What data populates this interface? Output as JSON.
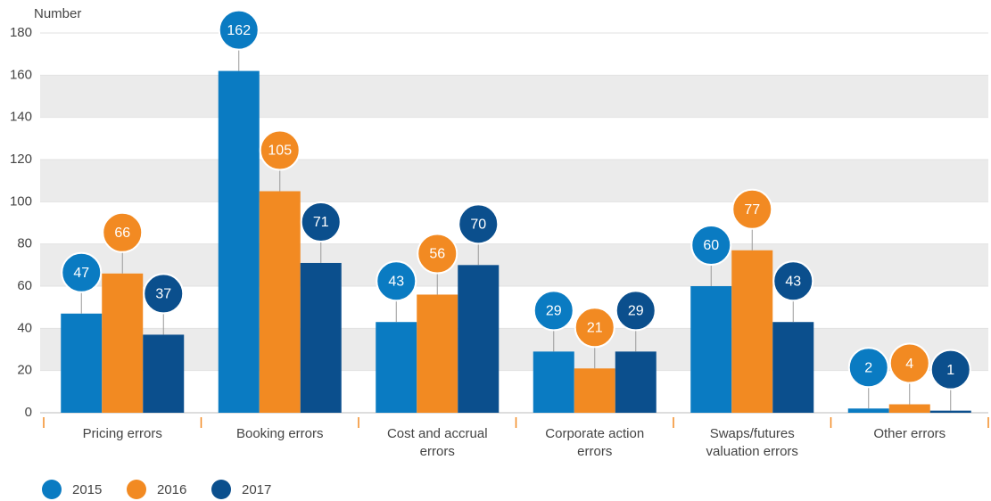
{
  "chart_data": {
    "type": "bar",
    "ylabel": "Number",
    "categories": [
      "Pricing errors",
      "Booking errors",
      "Cost and accrual errors",
      "Corporate action errors",
      "Swaps/futures valuation errors",
      "Other errors"
    ],
    "series": [
      {
        "name": "2015",
        "color": "#0a7bc2",
        "values": [
          47,
          162,
          43,
          29,
          60,
          2
        ]
      },
      {
        "name": "2016",
        "color": "#f28a22",
        "values": [
          66,
          105,
          56,
          21,
          77,
          4
        ]
      },
      {
        "name": "2017",
        "color": "#0b4f8d",
        "values": [
          37,
          71,
          70,
          29,
          43,
          1
        ]
      }
    ],
    "ylim": [
      0,
      180
    ],
    "yticks": [
      0,
      20,
      40,
      60,
      80,
      100,
      120,
      140,
      160,
      180
    ],
    "grid": true
  }
}
